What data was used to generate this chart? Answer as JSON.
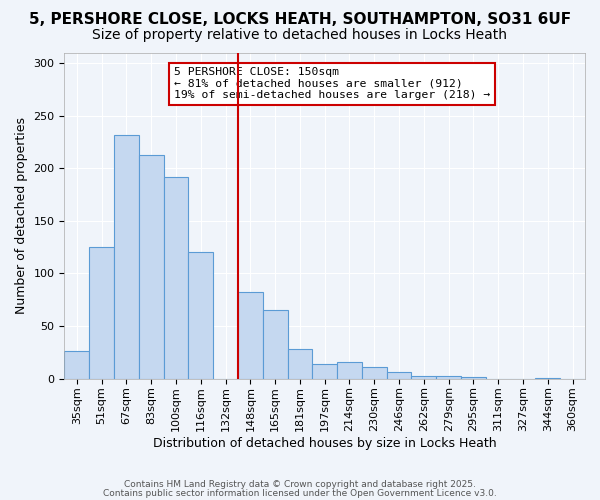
{
  "title": "5, PERSHORE CLOSE, LOCKS HEATH, SOUTHAMPTON, SO31 6UF",
  "subtitle": "Size of property relative to detached houses in Locks Heath",
  "xlabel": "Distribution of detached houses by size in Locks Heath",
  "ylabel": "Number of detached properties",
  "bar_color": "#c5d8f0",
  "bar_edge_color": "#5b9bd5",
  "categories": [
    "35sqm",
    "51sqm",
    "67sqm",
    "83sqm",
    "100sqm",
    "116sqm",
    "132sqm",
    "148sqm",
    "165sqm",
    "181sqm",
    "197sqm",
    "214sqm",
    "230sqm",
    "246sqm",
    "262sqm",
    "279sqm",
    "295sqm",
    "311sqm",
    "327sqm",
    "344sqm",
    "360sqm"
  ],
  "values": [
    26,
    125,
    232,
    213,
    192,
    120,
    0,
    82,
    65,
    28,
    14,
    16,
    11,
    6,
    3,
    3,
    2,
    0,
    0,
    1,
    0
  ],
  "ylim": [
    0,
    310
  ],
  "yticks": [
    0,
    50,
    100,
    150,
    200,
    250,
    300
  ],
  "property_line_x": 6.5,
  "property_line_color": "#cc0000",
  "annotation_title": "5 PERSHORE CLOSE: 150sqm",
  "annotation_line1": "← 81% of detached houses are smaller (912)",
  "annotation_line2": "19% of semi-detached houses are larger (218) →",
  "footer1": "Contains HM Land Registry data © Crown copyright and database right 2025.",
  "footer2": "Contains public sector information licensed under the Open Government Licence v3.0.",
  "bg_color": "#f0f4fa",
  "grid_color": "#ffffff",
  "title_fontsize": 11,
  "subtitle_fontsize": 10,
  "axis_fontsize": 9,
  "tick_fontsize": 8
}
